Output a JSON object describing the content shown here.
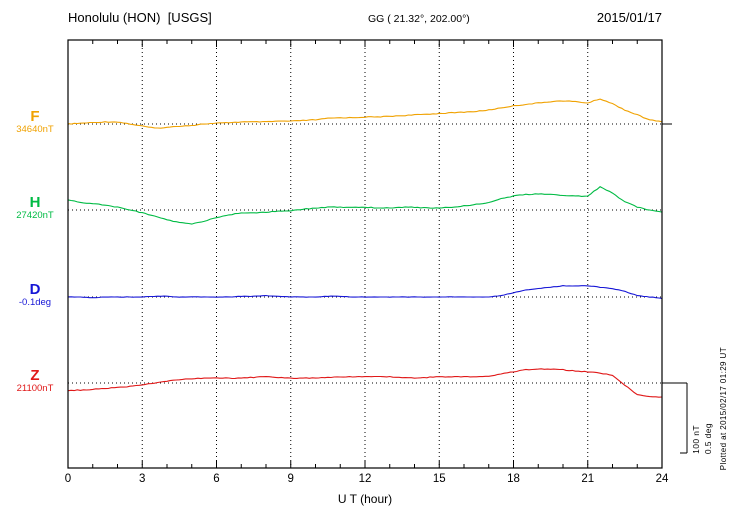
{
  "header": {
    "station": "Honolulu (HON)  [USGS]",
    "coords": "GG ( 21.32°, 202.00°)",
    "date": "2015/01/17"
  },
  "footer": {
    "plotted_at": "Plotted at 2015/02/17 01:29 UT"
  },
  "scale_bar": {
    "nt_label": "100 nT",
    "deg_label": "0.5 deg",
    "nT_per_division": 100,
    "deg_per_division": 0.5
  },
  "chart_data": {
    "type": "line",
    "title": "Honolulu (HON)  [USGS]",
    "xlabel": "U T (hour)",
    "xlim": [
      0,
      24
    ],
    "x_ticks": [
      0,
      3,
      6,
      9,
      12,
      15,
      18,
      21,
      24
    ],
    "minor_tick_hours": 1,
    "grid": "dotted vertical lines at 3-hour intervals; dotted horizontal baseline per channel",
    "legend_position": "left-of-plot channel labels",
    "sample_interval_hours": 0.5,
    "series": [
      {
        "name": "F",
        "unit": "nT",
        "baseline": 34640,
        "baseline_label": "34640nT",
        "color": "#f0a202",
        "offsets_from_baseline": [
          0,
          1,
          2,
          3,
          3,
          0,
          -3,
          -6,
          -5,
          -3,
          -2,
          0,
          1,
          2,
          3,
          3,
          3,
          4,
          4,
          5,
          6,
          8,
          9,
          9,
          10,
          10,
          11,
          12,
          13,
          14,
          15,
          16,
          17,
          18,
          20,
          23,
          26,
          28,
          30,
          32,
          33,
          32,
          30,
          36,
          29,
          20,
          13,
          6,
          3
        ]
      },
      {
        "name": "H",
        "unit": "nT",
        "baseline": 27420,
        "baseline_label": "27420nT",
        "color": "#00bb44",
        "offsets_from_baseline": [
          14,
          11,
          9,
          7,
          4,
          0,
          -4,
          -9,
          -14,
          -18,
          -20,
          -16,
          -11,
          -7,
          -4,
          -4,
          -3,
          -2,
          -1,
          1,
          3,
          4,
          4,
          4,
          4,
          3,
          3,
          4,
          4,
          3,
          3,
          4,
          6,
          8,
          11,
          16,
          20,
          22,
          23,
          22,
          21,
          20,
          20,
          33,
          24,
          12,
          4,
          0,
          -3
        ]
      },
      {
        "name": "D",
        "unit": "deg",
        "baseline": -0.1,
        "baseline_label": "-0.1deg",
        "color": "#1616d6",
        "offsets_from_baseline": [
          0,
          0,
          -0.005,
          0,
          0,
          0,
          0,
          0.005,
          0.005,
          0,
          0,
          0,
          0,
          0,
          0.005,
          0.005,
          0.01,
          0.005,
          0,
          0,
          0,
          0.005,
          0.005,
          0,
          0,
          0,
          0,
          0,
          0,
          0,
          0,
          0,
          0,
          0,
          0,
          0.01,
          0.03,
          0.05,
          0.06,
          0.07,
          0.08,
          0.08,
          0.08,
          0.07,
          0.06,
          0.04,
          0.01,
          0,
          -0.01
        ]
      },
      {
        "name": "Z",
        "unit": "nT",
        "baseline": 21100,
        "baseline_label": "21100nT",
        "color": "#e01818",
        "offsets_from_baseline": [
          -11,
          -10,
          -9,
          -8,
          -6,
          -5,
          -3,
          0,
          3,
          5,
          6,
          7,
          7,
          7,
          7,
          8,
          9,
          8,
          7,
          7,
          7,
          8,
          9,
          9,
          9,
          9,
          9,
          8,
          7,
          8,
          9,
          9,
          9,
          9,
          10,
          13,
          16,
          19,
          20,
          20,
          19,
          17,
          16,
          14,
          11,
          -3,
          -17,
          -19,
          -20
        ]
      }
    ]
  }
}
